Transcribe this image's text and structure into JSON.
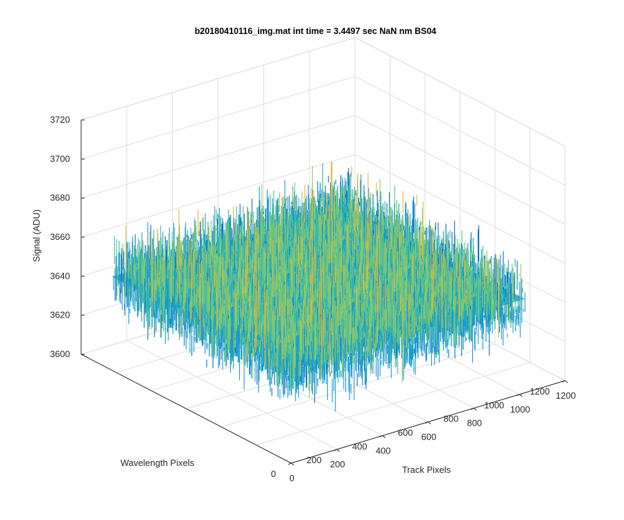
{
  "chart_data": {
    "type": "surface",
    "title": "b20180410116_img.mat int time = 3.4497 sec  NaN nm BS04",
    "xlabel": "Track Pixels",
    "ylabel": "Wavelength Pixels",
    "zlabel": "Signal (ADU)",
    "xlim": [
      0,
      1200
    ],
    "ylim": [
      0,
      1200
    ],
    "zlim": [
      3600,
      3720
    ],
    "xticks": [
      "0",
      "200",
      "400",
      "600",
      "800",
      "1000",
      "1200"
    ],
    "yticks": [
      "0",
      "200",
      "400",
      "600",
      "800",
      "1000",
      "1200"
    ],
    "zticks": [
      "3600",
      "3620",
      "3640",
      "3660",
      "3680",
      "3700",
      "3720"
    ],
    "data_extent": {
      "x": [
        0,
        1024
      ],
      "y": [
        0,
        1024
      ]
    },
    "signal_mean": 3648,
    "signal_range": [
      3610,
      3705
    ],
    "grid": true,
    "colormap": [
      "#0072BD",
      "#1A9AD0",
      "#2CB5B5",
      "#48C39A",
      "#8CC86A",
      "#D9B93B"
    ]
  }
}
